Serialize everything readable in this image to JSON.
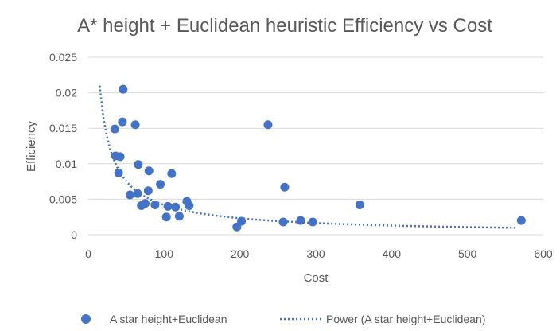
{
  "chart_data": {
    "type": "scatter",
    "title": "A* height + Euclidean heuristic Efficiency vs Cost",
    "xlabel": "Cost",
    "ylabel": "Efficiency",
    "xlim": [
      0,
      600
    ],
    "ylim": [
      0,
      0.025
    ],
    "x_ticks": [
      "0",
      "100",
      "200",
      "300",
      "400",
      "500",
      "600"
    ],
    "y_ticks": [
      "0",
      "0.005",
      "0.01",
      "0.015",
      "0.02",
      "0.025"
    ],
    "grid": "horizontal",
    "legend_position": "bottom",
    "colors": {
      "points": "#4472C4",
      "trendline": "#4472C4",
      "grid": "#d9d9d9",
      "text": "#595959"
    },
    "series": [
      {
        "name": "A star height+Euclidean",
        "points": [
          [
            35,
            0.0149
          ],
          [
            36,
            0.0111
          ],
          [
            40,
            0.0087
          ],
          [
            42,
            0.011
          ],
          [
            45,
            0.0159
          ],
          [
            46,
            0.0205
          ],
          [
            55,
            0.0056
          ],
          [
            62,
            0.0155
          ],
          [
            65,
            0.0058
          ],
          [
            66,
            0.0099
          ],
          [
            70,
            0.0041
          ],
          [
            75,
            0.0044
          ],
          [
            79,
            0.0062
          ],
          [
            80,
            0.009
          ],
          [
            88,
            0.0042
          ],
          [
            95,
            0.0071
          ],
          [
            103,
            0.0025
          ],
          [
            105,
            0.004
          ],
          [
            110,
            0.0086
          ],
          [
            115,
            0.0039
          ],
          [
            120,
            0.0026
          ],
          [
            130,
            0.0047
          ],
          [
            133,
            0.0041
          ],
          [
            196,
            0.0011
          ],
          [
            202,
            0.0019
          ],
          [
            237,
            0.0155
          ],
          [
            257,
            0.0018
          ],
          [
            259,
            0.0067
          ],
          [
            280,
            0.002
          ],
          [
            296,
            0.0018
          ],
          [
            358,
            0.0042
          ],
          [
            571,
            0.002
          ]
        ]
      }
    ],
    "trendline": {
      "name": "Power (A star height+Euclidean)",
      "type": "power",
      "a": 0.21,
      "b": -0.85,
      "x_range": [
        15,
        565
      ]
    }
  }
}
